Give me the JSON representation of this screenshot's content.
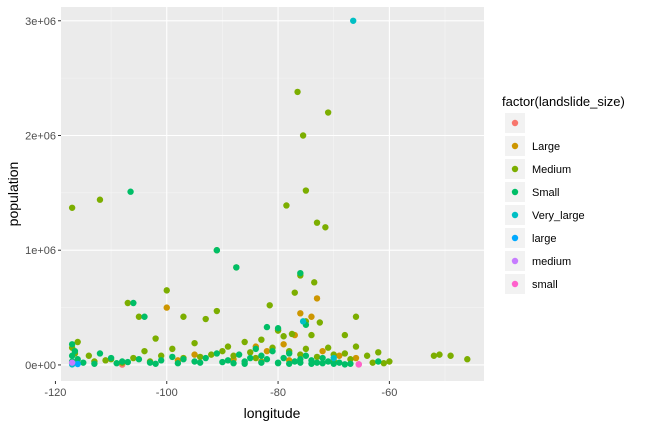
{
  "chart_data": {
    "type": "scatter",
    "xlabel": "longitude",
    "ylabel": "population",
    "xlim": [
      -119,
      -43
    ],
    "ylim": [
      -140000,
      3120000
    ],
    "x_ticks": [
      -120,
      -100,
      -80,
      -60
    ],
    "x_tick_labels": [
      "-120",
      "-100",
      "-80",
      "-60"
    ],
    "y_ticks": [
      0,
      1000000,
      2000000,
      3000000
    ],
    "y_tick_labels": [
      "0e+00",
      "1e+06",
      "2e+06",
      "3e+06"
    ],
    "grid": true,
    "legend": {
      "title": "factor(landslide_size)",
      "placement": "right",
      "entries": [
        "",
        "Large",
        "Medium",
        "Small",
        "Very_large",
        "large",
        "medium",
        "small"
      ]
    },
    "colors": {
      "": "#F8766D",
      "Large": "#CD9600",
      "Medium": "#7CAE00",
      "Small": "#00BE67",
      "Very_large": "#00BFC4",
      "large": "#00A9FF",
      "medium": "#C77CFF",
      "small": "#FF61CC"
    },
    "series": [
      {
        "name": "",
        "points": [
          [
            -117,
            10000
          ],
          [
            -65.5,
            5000
          ],
          [
            -108,
            3000
          ]
        ]
      },
      {
        "name": "Large",
        "points": [
          [
            -100,
            500000
          ],
          [
            -80,
            300000
          ],
          [
            -76,
            450000
          ],
          [
            -74,
            420000
          ],
          [
            -73,
            580000
          ],
          [
            -79,
            180000
          ],
          [
            -82,
            120000
          ],
          [
            -95,
            90000
          ],
          [
            -69,
            80000
          ],
          [
            -84,
            160000
          ],
          [
            -77,
            260000
          ],
          [
            -88,
            50000
          ],
          [
            -98,
            40000
          ],
          [
            -72,
            120000
          ],
          [
            -66,
            60000
          ],
          [
            -78,
            40000
          ],
          [
            -83,
            30000
          ]
        ]
      },
      {
        "name": "Medium",
        "points": [
          [
            -76.5,
            2380000
          ],
          [
            -71,
            2200000
          ],
          [
            -75.5,
            2000000
          ],
          [
            -75,
            1520000
          ],
          [
            -112,
            1440000
          ],
          [
            -117,
            1370000
          ],
          [
            -78.5,
            1390000
          ],
          [
            -73,
            1240000
          ],
          [
            -71.5,
            1200000
          ],
          [
            -91,
            1000000
          ],
          [
            -87.5,
            850000
          ],
          [
            -76,
            780000
          ],
          [
            -73.5,
            720000
          ],
          [
            -100,
            650000
          ],
          [
            -77,
            630000
          ],
          [
            -81.5,
            520000
          ],
          [
            -107,
            540000
          ],
          [
            -91,
            470000
          ],
          [
            -93,
            400000
          ],
          [
            -97,
            420000
          ],
          [
            -105,
            420000
          ],
          [
            -66,
            420000
          ],
          [
            -75,
            380000
          ],
          [
            -72.5,
            370000
          ],
          [
            -68,
            260000
          ],
          [
            -116,
            200000
          ],
          [
            -102,
            230000
          ],
          [
            -110,
            50000
          ],
          [
            -114,
            80000
          ],
          [
            -104,
            120000
          ],
          [
            -99,
            140000
          ],
          [
            -95,
            190000
          ],
          [
            -89,
            160000
          ],
          [
            -86,
            200000
          ],
          [
            -83,
            220000
          ],
          [
            -80,
            300000
          ],
          [
            -79,
            250000
          ],
          [
            -77.5,
            270000
          ],
          [
            -74,
            260000
          ],
          [
            -71,
            150000
          ],
          [
            -70,
            90000
          ],
          [
            -68,
            100000
          ],
          [
            -66,
            160000
          ],
          [
            -64,
            80000
          ],
          [
            -62,
            110000
          ],
          [
            -60,
            30000
          ],
          [
            -52,
            80000
          ],
          [
            -51,
            90000
          ],
          [
            -49,
            80000
          ],
          [
            -46,
            50000
          ],
          [
            -113,
            30000
          ],
          [
            -111,
            40000
          ],
          [
            -108,
            20000
          ],
          [
            -106,
            60000
          ],
          [
            -103,
            30000
          ],
          [
            -101,
            80000
          ],
          [
            -97,
            60000
          ],
          [
            -94,
            70000
          ],
          [
            -92,
            90000
          ],
          [
            -90,
            120000
          ],
          [
            -88,
            80000
          ],
          [
            -85,
            110000
          ],
          [
            -84,
            60000
          ],
          [
            -81,
            150000
          ],
          [
            -78,
            120000
          ],
          [
            -76,
            90000
          ],
          [
            -75,
            140000
          ],
          [
            -73,
            70000
          ],
          [
            -70,
            40000
          ],
          [
            -67,
            50000
          ],
          [
            -63,
            20000
          ],
          [
            -61,
            15000
          ],
          [
            -117,
            150000
          ],
          [
            -116.5,
            100000
          ]
        ]
      },
      {
        "name": "Small",
        "points": [
          [
            -106.5,
            1510000
          ],
          [
            -91,
            1000000
          ],
          [
            -87.5,
            850000
          ],
          [
            -76,
            800000
          ],
          [
            -106,
            540000
          ],
          [
            -104,
            420000
          ],
          [
            -82,
            330000
          ],
          [
            -80,
            320000
          ],
          [
            -75,
            350000
          ],
          [
            -117,
            180000
          ],
          [
            -116.5,
            120000
          ],
          [
            -117,
            80000
          ],
          [
            -116,
            50000
          ],
          [
            -112,
            100000
          ],
          [
            -110,
            60000
          ],
          [
            -108,
            30000
          ],
          [
            -105,
            50000
          ],
          [
            -103,
            20000
          ],
          [
            -101,
            40000
          ],
          [
            -99,
            70000
          ],
          [
            -97,
            50000
          ],
          [
            -95,
            30000
          ],
          [
            -93,
            60000
          ],
          [
            -91,
            100000
          ],
          [
            -89,
            40000
          ],
          [
            -87,
            90000
          ],
          [
            -86,
            30000
          ],
          [
            -85,
            60000
          ],
          [
            -84,
            140000
          ],
          [
            -83,
            80000
          ],
          [
            -82,
            50000
          ],
          [
            -81,
            120000
          ],
          [
            -80,
            20000
          ],
          [
            -79,
            60000
          ],
          [
            -78,
            100000
          ],
          [
            -77,
            30000
          ],
          [
            -76,
            50000
          ],
          [
            -75,
            80000
          ],
          [
            -74,
            40000
          ],
          [
            -73,
            20000
          ],
          [
            -72,
            60000
          ],
          [
            -71,
            30000
          ],
          [
            -69,
            20000
          ],
          [
            -67,
            10000
          ],
          [
            -62,
            30000
          ],
          [
            -117,
            30000
          ],
          [
            -115,
            20000
          ],
          [
            -113,
            10000
          ],
          [
            -109,
            15000
          ],
          [
            -107,
            25000
          ],
          [
            -102,
            10000
          ],
          [
            -98,
            15000
          ],
          [
            -94,
            20000
          ],
          [
            -90,
            25000
          ],
          [
            -88,
            15000
          ],
          [
            -86,
            10000
          ],
          [
            -83,
            20000
          ],
          [
            -80,
            15000
          ],
          [
            -78,
            10000
          ],
          [
            -76,
            20000
          ],
          [
            -74,
            10000
          ],
          [
            -72,
            15000
          ],
          [
            -70,
            10000
          ],
          [
            -68,
            5000
          ]
        ]
      },
      {
        "name": "Very_large",
        "points": [
          [
            -66.5,
            3000000
          ],
          [
            -75.5,
            380000
          ],
          [
            -117,
            5000
          ],
          [
            -70,
            60000
          ]
        ]
      },
      {
        "name": "large",
        "points": [
          [
            -116,
            8000
          ]
        ]
      },
      {
        "name": "medium",
        "points": [
          [
            -117,
            20000
          ]
        ]
      },
      {
        "name": "small",
        "points": [
          [
            -65.5,
            5000
          ]
        ]
      }
    ]
  }
}
